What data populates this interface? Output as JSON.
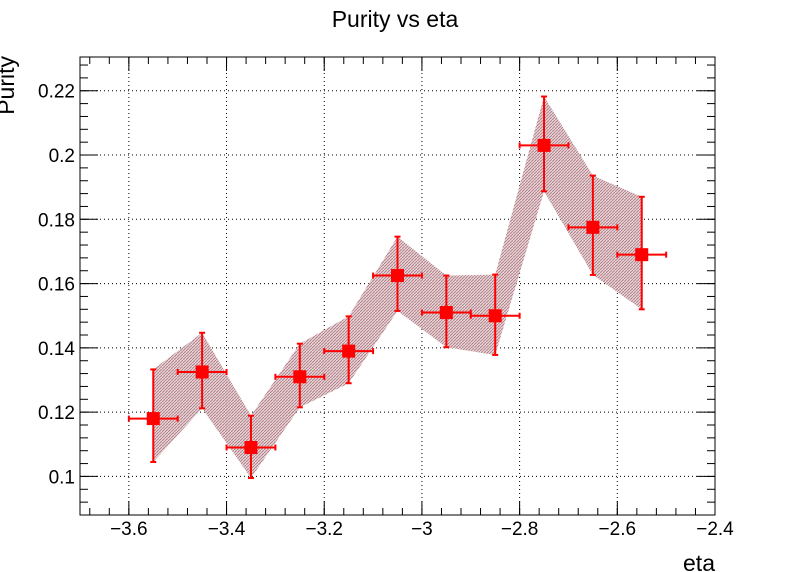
{
  "chart_data": {
    "type": "scatter",
    "title": "Purity vs eta",
    "xlabel": "eta",
    "ylabel": "Purity",
    "xlim": [
      -3.7,
      -2.4
    ],
    "ylim": [
      0.088,
      0.2305
    ],
    "grid": true,
    "x_ticks": [
      -3.6,
      -3.4,
      -3.2,
      -3.0,
      -2.8,
      -2.6,
      -2.4
    ],
    "x_tick_labels": [
      "−3.6",
      "−3.4",
      "−3.2",
      "−3",
      "−2.8",
      "−2.6",
      "−2.4"
    ],
    "y_ticks": [
      0.1,
      0.12,
      0.14,
      0.16,
      0.18,
      0.2,
      0.22
    ],
    "y_tick_labels": [
      "0.1",
      "0.12",
      "0.14",
      "0.16",
      "0.18",
      "0.2",
      "0.22"
    ],
    "marker_color": "#ff0000",
    "band_color": "#b07a82",
    "series": [
      {
        "x": [
          -3.55,
          -3.45,
          -3.35,
          -3.25,
          -3.15,
          -3.05,
          -2.95,
          -2.85,
          -2.75,
          -2.65,
          -2.55
        ],
        "x_err": [
          0.05,
          0.05,
          0.05,
          0.05,
          0.05,
          0.05,
          0.05,
          0.05,
          0.05,
          0.05,
          0.05
        ],
        "y": [
          0.118,
          0.1325,
          0.109,
          0.131,
          0.139,
          0.1625,
          0.151,
          0.15,
          0.203,
          0.1775,
          0.169
        ],
        "y_err_lo": [
          0.0135,
          0.0113,
          0.0095,
          0.0095,
          0.01,
          0.011,
          0.0108,
          0.0122,
          0.0143,
          0.0148,
          0.017
        ],
        "y_err_hi": [
          0.0153,
          0.0122,
          0.0099,
          0.0103,
          0.0108,
          0.0121,
          0.0115,
          0.0128,
          0.0152,
          0.0161,
          0.018
        ],
        "band_lo": [
          0.1045,
          0.1212,
          0.0995,
          0.1215,
          0.129,
          0.1515,
          0.1402,
          0.1378,
          0.1887,
          0.1627,
          0.152
        ],
        "band_hi": [
          0.1333,
          0.1447,
          0.1189,
          0.1413,
          0.1498,
          0.1746,
          0.1625,
          0.1628,
          0.2182,
          0.1936,
          0.187
        ]
      }
    ]
  }
}
